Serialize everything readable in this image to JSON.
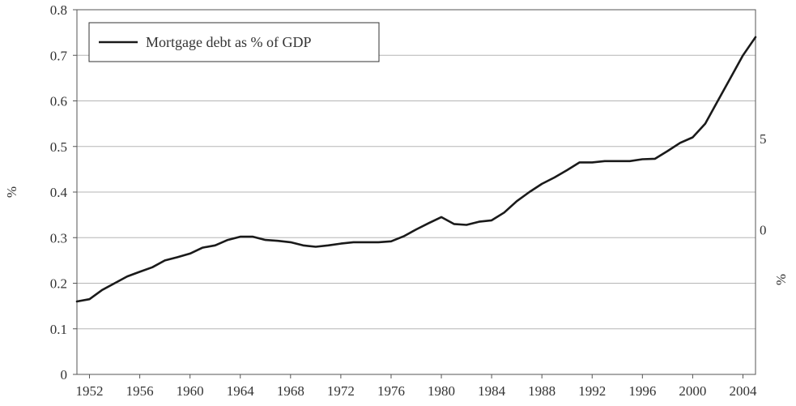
{
  "chart_data": {
    "type": "line",
    "title": "",
    "xlabel": "",
    "ylabel": "%",
    "y2label": "%",
    "xlim": [
      1951,
      2005
    ],
    "ylim": [
      0,
      0.8
    ],
    "yticks": [
      "0",
      "0.1",
      "0.2",
      "0.3",
      "0.4",
      "0.5",
      "0.6",
      "0.7",
      "0.8"
    ],
    "xticks": [
      "1952",
      "1956",
      "1960",
      "1964",
      "1968",
      "1972",
      "1976",
      "1980",
      "1984",
      "1988",
      "1992",
      "1996",
      "2000",
      "2004"
    ],
    "y2ticks": [
      "5",
      "0"
    ],
    "grid": true,
    "legend": "top-left",
    "colors": {
      "line": "#1a1a1a",
      "grid": "#b5b5b5",
      "axis": "#555555"
    },
    "series": [
      {
        "name": "Mortgage debt as % of GDP",
        "x": [
          1951.0,
          1952.0,
          1953.0,
          1954.0,
          1955.0,
          1956.0,
          1957.0,
          1958.0,
          1959.0,
          1960.0,
          1961.0,
          1962.0,
          1963.0,
          1964.0,
          1965.0,
          1966.0,
          1967.0,
          1968.0,
          1969.0,
          1970.0,
          1971.0,
          1972.0,
          1973.0,
          1974.0,
          1975.0,
          1976.0,
          1977.0,
          1978.0,
          1979.0,
          1980.0,
          1981.0,
          1982.0,
          1983.0,
          1984.0,
          1985.0,
          1986.0,
          1987.0,
          1988.0,
          1989.0,
          1990.0,
          1991.0,
          1992.0,
          1993.0,
          1994.0,
          1995.0,
          1996.0,
          1997.0,
          1998.0,
          1999.0,
          2000.0,
          2001.0,
          2002.0,
          2003.0,
          2004.0,
          2005.0
        ],
        "y": [
          0.16,
          0.165,
          0.185,
          0.2,
          0.215,
          0.225,
          0.235,
          0.25,
          0.257,
          0.265,
          0.278,
          0.283,
          0.295,
          0.302,
          0.302,
          0.295,
          0.293,
          0.29,
          0.283,
          0.28,
          0.283,
          0.287,
          0.29,
          0.29,
          0.29,
          0.292,
          0.303,
          0.318,
          0.332,
          0.345,
          0.33,
          0.328,
          0.335,
          0.338,
          0.355,
          0.38,
          0.4,
          0.418,
          0.432,
          0.448,
          0.465,
          0.465,
          0.468,
          0.468,
          0.468,
          0.472,
          0.473,
          0.49,
          0.508,
          0.52,
          0.55,
          0.6,
          0.65,
          0.7,
          0.74
        ]
      }
    ]
  }
}
